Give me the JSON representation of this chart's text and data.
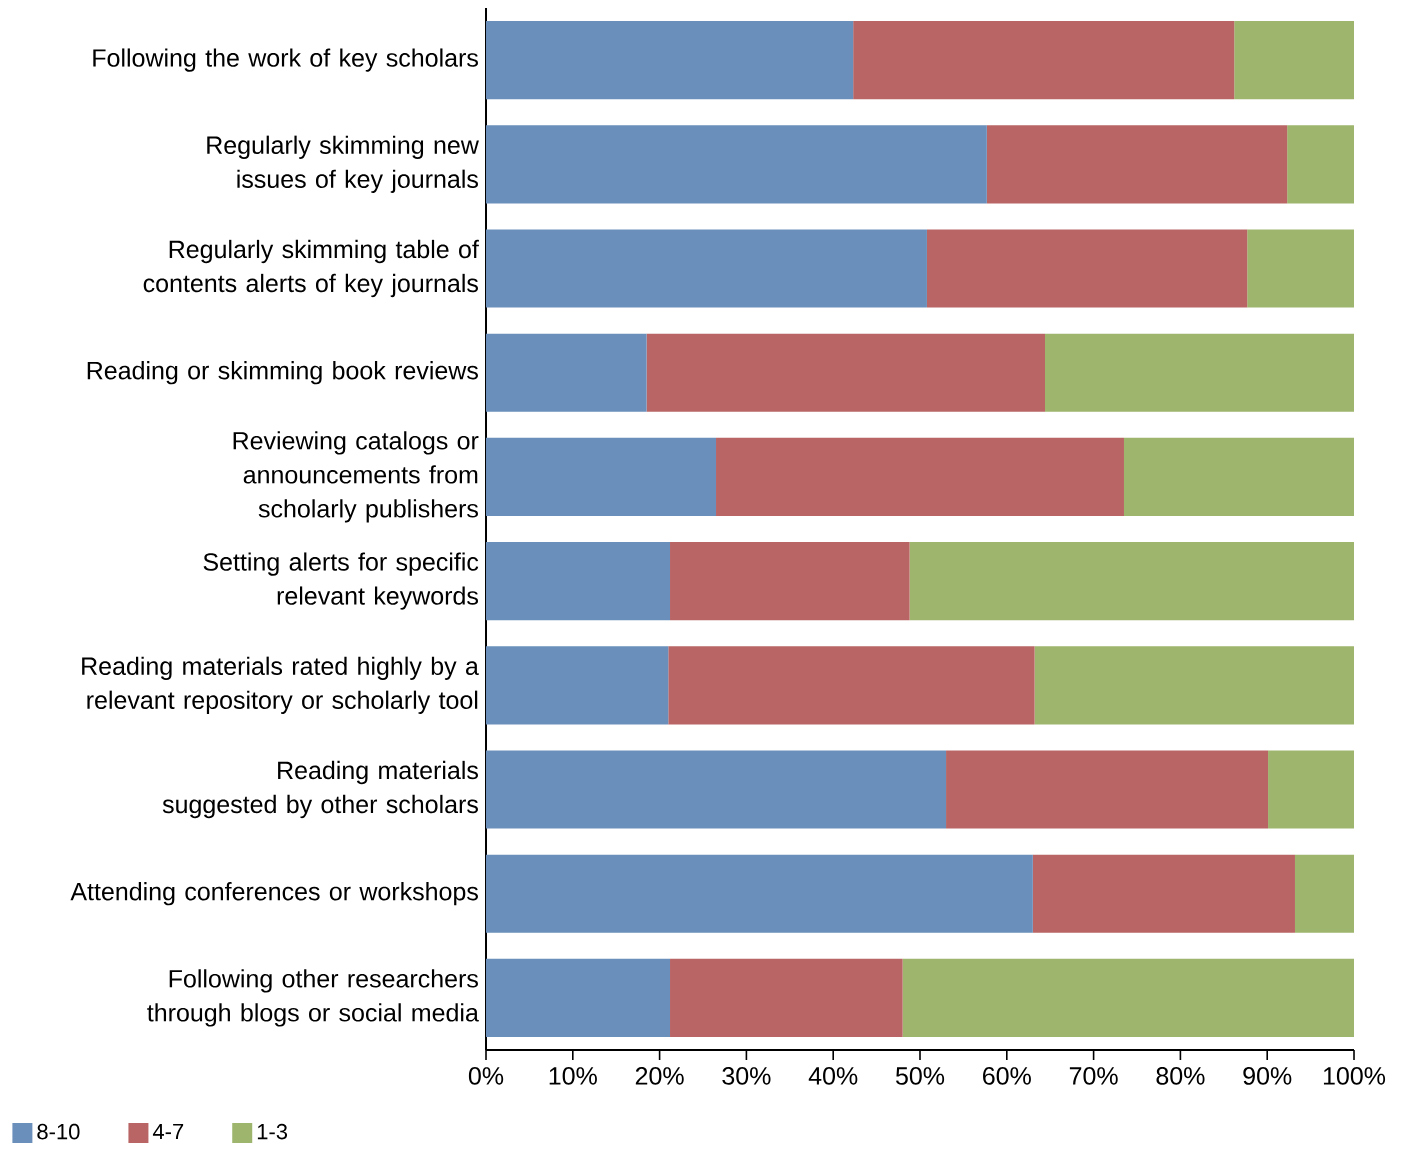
{
  "chart_data": {
    "type": "bar",
    "orientation": "horizontal",
    "stacked": true,
    "categories": [
      "Following the work of key scholars",
      "Regularly skimming new issues of key journals",
      "Regularly skimming table of contents alerts of key journals",
      "Reading or skimming book reviews",
      "Reviewing catalogs or announcements from scholarly publishers",
      "Setting alerts for specific relevant keywords",
      "Reading materials rated highly by a relevant repository or scholarly tool",
      "Reading materials suggested by other scholars",
      "Attending conferences or workshops",
      "Following other researchers through blogs or social media"
    ],
    "series": [
      {
        "name": "8-10",
        "color": "#6a8fba",
        "values": [
          42.3,
          57.7,
          50.8,
          18.5,
          26.5,
          21.2,
          21.0,
          53.0,
          63.0,
          21.2
        ]
      },
      {
        "name": "4-7",
        "color": "#b96565",
        "values": [
          43.9,
          34.6,
          36.9,
          45.9,
          47.0,
          27.6,
          42.2,
          37.1,
          30.2,
          26.8
        ]
      },
      {
        "name": "1-3",
        "color": "#9eb56e",
        "values": [
          13.8,
          7.7,
          12.3,
          35.6,
          26.5,
          51.2,
          36.8,
          9.9,
          6.8,
          52.0
        ]
      }
    ],
    "xlim": [
      0,
      100
    ],
    "xticks": [
      {
        "value": 0,
        "label": "0%"
      },
      {
        "value": 10,
        "label": "10%"
      },
      {
        "value": 20,
        "label": "20%"
      },
      {
        "value": 30,
        "label": "30%"
      },
      {
        "value": 40,
        "label": "40%"
      },
      {
        "value": 50,
        "label": "50%"
      },
      {
        "value": 60,
        "label": "60%"
      },
      {
        "value": 70,
        "label": "70%"
      },
      {
        "value": 80,
        "label": "80%"
      },
      {
        "value": 90,
        "label": "90%"
      },
      {
        "value": 100,
        "label": "100%"
      }
    ],
    "grid": false,
    "legend": "bottom"
  }
}
